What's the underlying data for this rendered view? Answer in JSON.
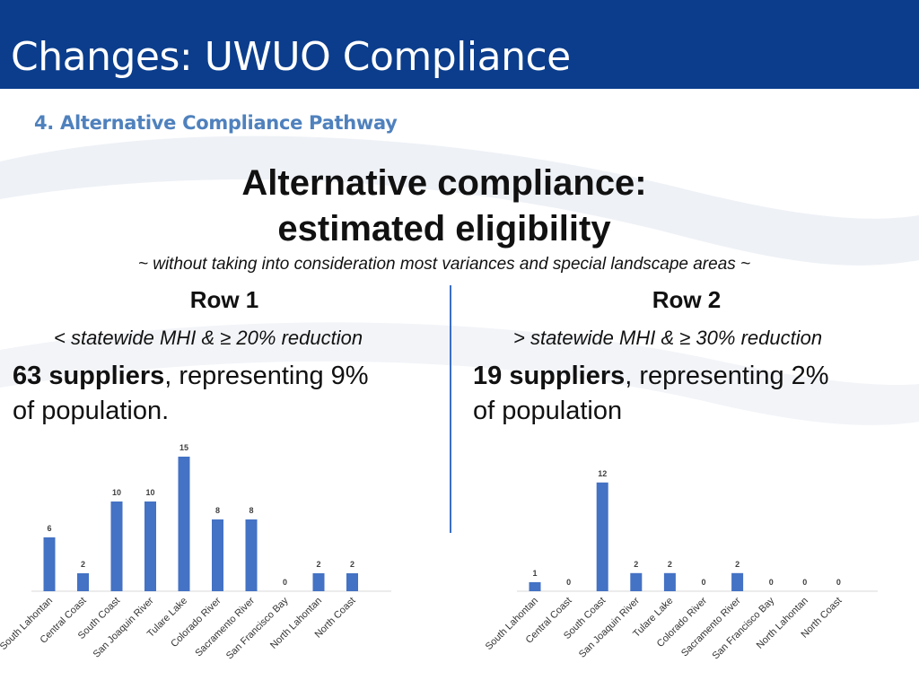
{
  "header": {
    "title": "Changes: UWUO Compliance"
  },
  "subtitle": "4. Alternative Compliance Pathway",
  "main": {
    "title_line1": "Alternative compliance:",
    "title_line2": "estimated eligibility",
    "note": "~ without taking into consideration most variances and special landscape areas ~"
  },
  "rows": [
    {
      "title": "Row 1",
      "criteria": "< statewide MHI &  ≥ 20% reduction",
      "suppliers": "63 suppliers",
      "representing": ", representing  9%",
      "population": "of population."
    },
    {
      "title": "Row 2",
      "criteria": "> statewide MHI &  ≥ 30% reduction",
      "suppliers": "19 suppliers",
      "representing": ", representing  2%",
      "population": "of population"
    }
  ],
  "colors": {
    "header": "#0b3d8c",
    "subtitle": "#4f81bd",
    "bar": "#4472c4"
  },
  "chart_data": [
    {
      "type": "bar",
      "categories": [
        "South Lahontan",
        "Central Coast",
        "South Coast",
        "San Joaquin River",
        "Tulare Lake",
        "Colorado River",
        "Sacramento River",
        "San Francisco Bay",
        "North Lahontan",
        "North Coast"
      ],
      "values": [
        6,
        2,
        10,
        10,
        15,
        8,
        8,
        0,
        2,
        2
      ],
      "title": "",
      "xlabel": "",
      "ylabel": "",
      "ylim": [
        0,
        16
      ]
    },
    {
      "type": "bar",
      "categories": [
        "South Lahontan",
        "Central Coast",
        "South Coast",
        "San Joaquin River",
        "Tulare Lake",
        "Colorado River",
        "Sacramento River",
        "San Francisco Bay",
        "North Lahontan",
        "North Coast"
      ],
      "values": [
        1,
        0,
        12,
        2,
        2,
        0,
        2,
        0,
        0,
        0
      ],
      "title": "",
      "xlabel": "",
      "ylabel": "",
      "ylim": [
        0,
        13
      ]
    }
  ]
}
